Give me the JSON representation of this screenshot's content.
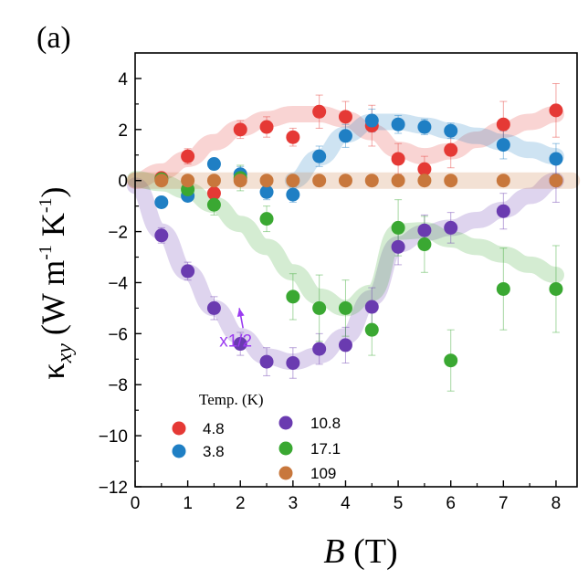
{
  "chart_data": {
    "type": "scatter",
    "panel_label": "(a)",
    "xlabel": "B (T)",
    "ylabel": "κxy (W m-1 K-1)",
    "xlim": [
      0,
      8.4
    ],
    "ylim": [
      -12,
      5
    ],
    "xticks": [
      0,
      1,
      2,
      3,
      4,
      5,
      6,
      7,
      8
    ],
    "yticks": [
      4,
      2,
      0,
      -2,
      -4,
      -6,
      -8,
      -10,
      -12
    ],
    "legend": {
      "title": "Temp. (K)",
      "placement": "bottom-left"
    },
    "annotation": {
      "text": "x1/2",
      "color": "#9b3cf0",
      "points_to_series": "10.8",
      "at": {
        "x": 1.6,
        "y": -6.5
      },
      "arrow_to": {
        "x": 1.98,
        "y": -5.0
      }
    },
    "series": [
      {
        "name": "4.8",
        "color": "#e53935",
        "x": [
          0.5,
          1,
          1.5,
          2,
          2.5,
          3,
          3.5,
          4,
          4.5,
          5,
          5.5,
          6,
          7,
          8
        ],
        "y": [
          0.1,
          0.95,
          -0.5,
          2.0,
          2.1,
          1.7,
          2.7,
          2.5,
          2.15,
          0.85,
          0.45,
          1.2,
          2.2,
          2.75
        ],
        "err": [
          0.15,
          0.3,
          0.3,
          0.35,
          0.4,
          0.35,
          0.65,
          0.6,
          0.8,
          0.6,
          0.5,
          0.7,
          0.9,
          1.05
        ],
        "trend_x": [
          0,
          0.5,
          1,
          1.5,
          2,
          2.5,
          3,
          3.5,
          4,
          4.5,
          5,
          5.5,
          6,
          6.5,
          7,
          7.5,
          8
        ],
        "trend_y": [
          0,
          0.35,
          0.85,
          1.5,
          2.05,
          2.4,
          2.6,
          2.6,
          2.4,
          1.9,
          1.2,
          0.95,
          1.15,
          1.6,
          2.0,
          2.3,
          2.6
        ]
      },
      {
        "name": "3.8",
        "color": "#1f7fc4",
        "x": [
          0.5,
          1,
          1.5,
          2,
          2.5,
          3,
          3.5,
          4,
          4.5,
          5,
          5.5,
          6,
          7,
          8
        ],
        "y": [
          -0.85,
          -0.6,
          0.65,
          0.25,
          -0.45,
          -0.55,
          0.95,
          1.75,
          2.35,
          2.2,
          2.1,
          1.95,
          1.4,
          0.85
        ],
        "err": [
          0.1,
          0.15,
          0.2,
          0.3,
          0.3,
          0.3,
          0.4,
          0.45,
          0.45,
          0.35,
          0.3,
          0.3,
          0.55,
          0.6
        ],
        "trend_x": [
          3,
          3.5,
          4,
          4.5,
          5,
          5.5,
          6,
          6.5,
          7,
          7.5,
          8
        ],
        "trend_y": [
          0,
          0.9,
          1.8,
          2.3,
          2.3,
          2.15,
          1.95,
          1.75,
          1.5,
          1.2,
          0.95
        ]
      },
      {
        "name": "10.8",
        "color": "#6a3bb0",
        "x": [
          0.5,
          1,
          1.5,
          2,
          2.5,
          3,
          3.5,
          4,
          4.5,
          5,
          5.5,
          6,
          7,
          8
        ],
        "y": [
          -2.15,
          -3.55,
          -5.0,
          -6.4,
          -7.1,
          -7.15,
          -6.6,
          -6.45,
          -4.95,
          -2.6,
          -1.95,
          -1.85,
          -1.2,
          0.0
        ],
        "err": [
          0.3,
          0.35,
          0.45,
          0.45,
          0.55,
          0.6,
          0.6,
          0.7,
          0.75,
          0.7,
          0.6,
          0.6,
          0.7,
          0.85
        ],
        "trend_x": [
          0,
          0.5,
          1,
          1.5,
          2,
          2.5,
          3,
          3.5,
          4,
          4.5,
          5,
          5.5,
          6,
          6.5,
          7,
          7.5,
          8
        ],
        "trend_y": [
          -0.2,
          -2.0,
          -3.6,
          -5.0,
          -6.1,
          -6.9,
          -7.1,
          -6.85,
          -6.1,
          -4.6,
          -2.5,
          -2.05,
          -1.85,
          -1.55,
          -1.15,
          -0.6,
          0.0
        ]
      },
      {
        "name": "17.1",
        "color": "#3aa832",
        "x": [
          0.5,
          1,
          1.5,
          2,
          2.5,
          3,
          3.5,
          4,
          4.5,
          5,
          5.5,
          6,
          7,
          8
        ],
        "y": [
          0.05,
          -0.35,
          -0.95,
          0.1,
          -1.5,
          -4.55,
          -5.0,
          -5.0,
          -5.85,
          -1.85,
          -2.5,
          -7.05,
          -4.25,
          -4.25
        ],
        "err": [
          0.2,
          0.3,
          0.4,
          0.5,
          0.5,
          0.9,
          1.3,
          1.1,
          1.0,
          1.1,
          1.1,
          1.2,
          1.6,
          1.7
        ],
        "trend_x": [
          0,
          0.5,
          1,
          1.5,
          2,
          2.5,
          3,
          3.5,
          4,
          4.5,
          5,
          5.5,
          6,
          6.5,
          7,
          7.5,
          8
        ],
        "trend_y": [
          0.05,
          -0.1,
          -0.4,
          -0.95,
          -1.7,
          -2.6,
          -3.6,
          -4.55,
          -5.0,
          -4.4,
          -2.0,
          -1.95,
          -2.3,
          -2.6,
          -2.9,
          -3.3,
          -3.7
        ]
      },
      {
        "name": "109",
        "color": "#c8773c",
        "x": [
          0.5,
          1,
          1.5,
          2,
          2.5,
          3,
          3.5,
          4,
          4.5,
          5,
          5.5,
          6,
          7,
          8
        ],
        "y": [
          0,
          0,
          0,
          0,
          0,
          0,
          0,
          0,
          0,
          0,
          0,
          0,
          0,
          0
        ],
        "err": [
          0.05,
          0.05,
          0.05,
          0.05,
          0.05,
          0.05,
          0.05,
          0.05,
          0.05,
          0.05,
          0.05,
          0.05,
          0.05,
          0.05
        ],
        "trend_x": [
          0,
          8.3
        ],
        "trend_y": [
          0,
          0
        ]
      }
    ],
    "legend_order": [
      "4.8",
      "3.8",
      "10.8",
      "17.1",
      "109"
    ]
  }
}
